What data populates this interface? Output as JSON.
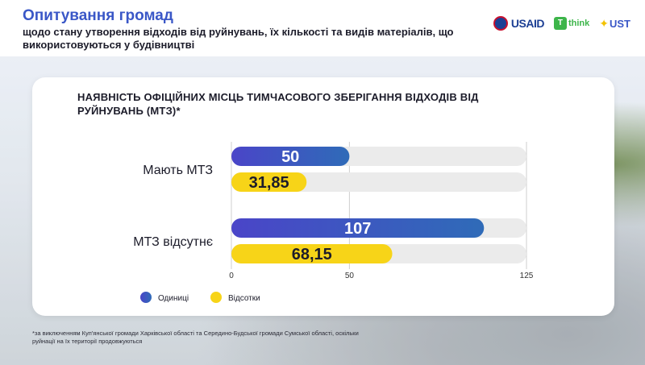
{
  "header": {
    "title": "Опитування громад",
    "subtitle": "щодо стану утворення відходів від руйнувань, їх кількості та видів матеріалів, що використовуються у будівництві"
  },
  "logos": {
    "usaid": "USAID",
    "think": "think",
    "think_mark": "T",
    "ust": "UST",
    "ust_star": "✦"
  },
  "chart_data": {
    "type": "bar",
    "title": "НАЯВНІСТЬ ОФІЦІЙНИХ МІСЦЬ ТИМЧАСОВОГО ЗБЕРІГАННЯ ВІДХОДІВ ВІД РУЙНУВАНЬ (МТЗ)*",
    "categories": [
      "Мають МТЗ",
      "МТЗ відсутнє"
    ],
    "series": [
      {
        "name": "Одиниці",
        "values": [
          50,
          107
        ],
        "labels": [
          "50",
          "107"
        ],
        "color": "#3a57c7"
      },
      {
        "name": "Відсотки",
        "values": [
          31.85,
          68.15
        ],
        "labels": [
          "31,85",
          "68,15"
        ],
        "color": "#f7d418"
      }
    ],
    "xlim": [
      0,
      125
    ],
    "xticks": [
      0,
      50,
      125
    ],
    "orientation": "horizontal",
    "grid": true,
    "legend_position": "bottom-left"
  },
  "footnote": "*за виключенням Куп'янської громади Харківської області та Середино-Будської громади Сумської області, оскільки руйнації на їх території продовжуються",
  "colors": {
    "brand_blue": "#3a57c7",
    "bar_track": "#ebebeb",
    "yellow": "#f7d418"
  }
}
